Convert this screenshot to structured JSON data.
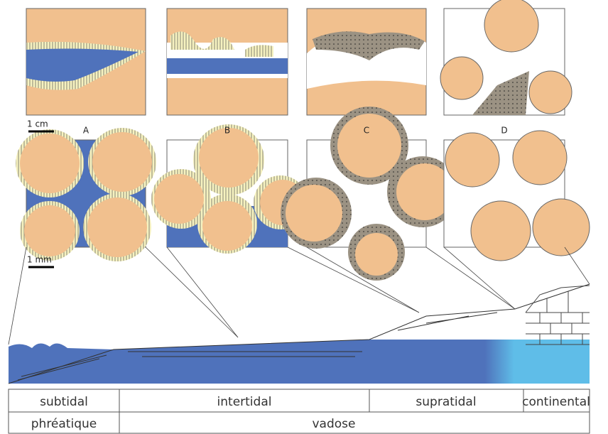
{
  "scale_bars": [
    "1 cm",
    "1 mm"
  ],
  "panels": [
    "A",
    "B",
    "C",
    "D"
  ],
  "zones": {
    "row1": [
      "subtidal",
      "intertidal",
      "supratidal",
      "continental"
    ],
    "row2": [
      "phréatique",
      "vadose"
    ]
  }
}
